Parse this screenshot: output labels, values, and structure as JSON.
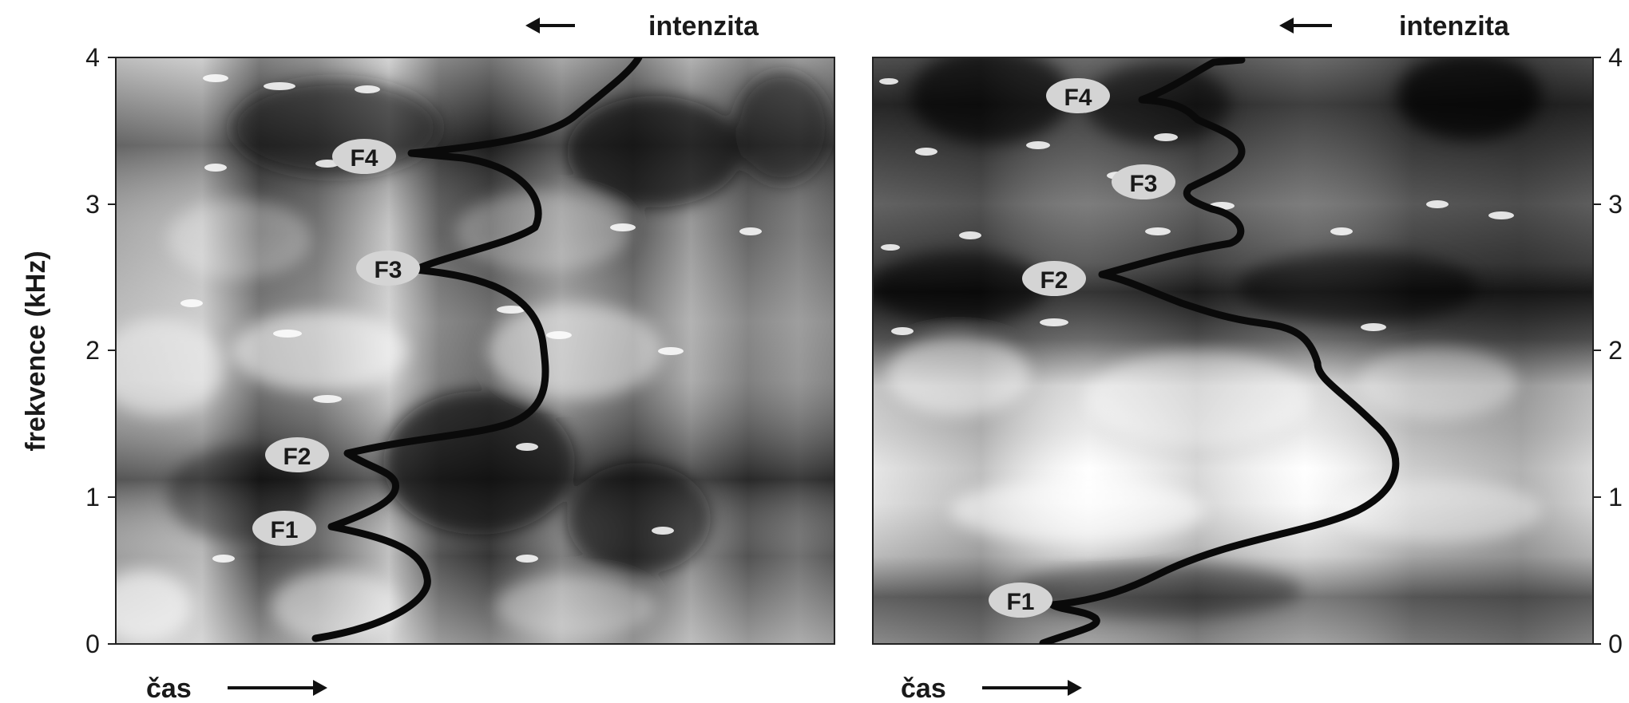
{
  "y_axis_label": "frekvence (kHz)",
  "y_ticks": [
    "0",
    "1",
    "2",
    "3",
    "4"
  ],
  "panels": [
    {
      "intensity_label": "intenzita",
      "time_label": "čas",
      "formants": [
        "F1",
        "F2",
        "F3",
        "F4"
      ]
    },
    {
      "intensity_label": "intenzita",
      "time_label": "čas",
      "formants": [
        "F1",
        "F2",
        "F3",
        "F4"
      ]
    }
  ]
}
